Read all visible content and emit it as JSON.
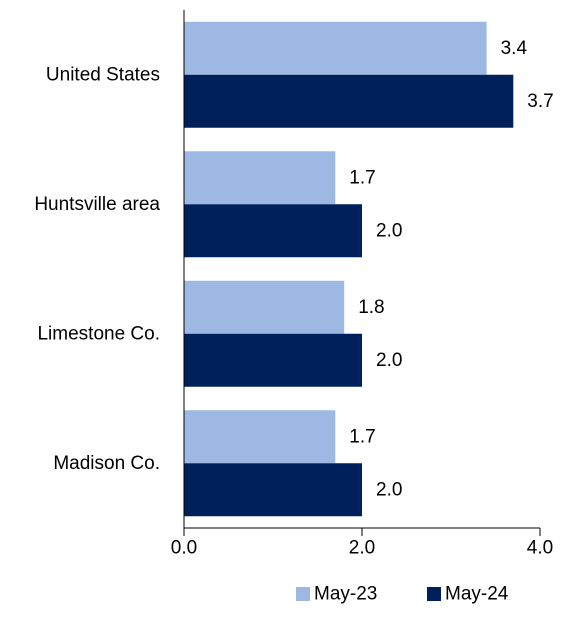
{
  "chart_data": {
    "type": "bar",
    "orientation": "horizontal",
    "categories": [
      "United States",
      "Huntsville area",
      "Limestone Co.",
      "Madison Co."
    ],
    "series": [
      {
        "name": "May-23",
        "values": [
          3.4,
          1.7,
          1.8,
          1.7
        ],
        "labels": [
          "3.4",
          "1.7",
          "1.8",
          "1.7"
        ],
        "color": "#9db9e3"
      },
      {
        "name": "May-24",
        "values": [
          3.7,
          2.0,
          2.0,
          2.0
        ],
        "labels": [
          "3.7",
          "2.0",
          "2.0",
          "2.0"
        ],
        "color": "#00205b"
      }
    ],
    "xlim": [
      0,
      4
    ],
    "xticks": [
      0,
      2,
      4
    ],
    "xtick_labels": [
      "0.0",
      "2.0",
      "4.0"
    ],
    "title": "",
    "xlabel": "",
    "ylabel": "",
    "grid": false,
    "legend_position": "bottom-right"
  }
}
